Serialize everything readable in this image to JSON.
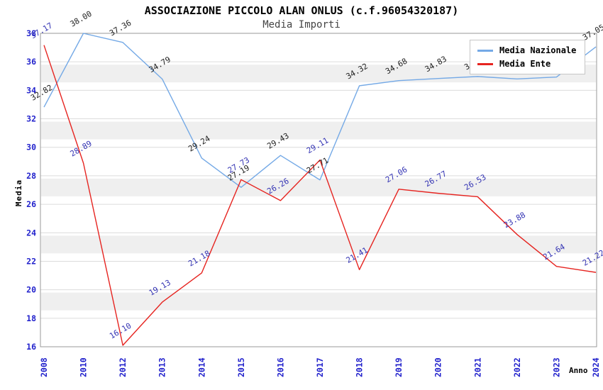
{
  "title": "ASSOCIAZIONE PICCOLO ALAN ONLUS (c.f.96054320187)",
  "subtitle": "Media Importi",
  "chart_data": {
    "type": "line",
    "title": "ASSOCIAZIONE PICCOLO ALAN ONLUS (c.f.96054320187)",
    "subtitle": "Media Importi",
    "xlabel": "Anno",
    "ylabel": "Media",
    "ylim": [
      16,
      38
    ],
    "ytick_step": 2,
    "grid": true,
    "legend_position": "top-right",
    "tick_label_color": "#2222cc",
    "categories": [
      "2008",
      "2010",
      "2012",
      "2013",
      "2014",
      "2015",
      "2016",
      "2017",
      "2018",
      "2019",
      "2020",
      "2021",
      "2022",
      "2023",
      "2024"
    ],
    "series": [
      {
        "name": "Media Nazionale",
        "color": "#74a9e6",
        "label_color": "#222222",
        "values": [
          32.82,
          38.0,
          37.36,
          34.79,
          29.24,
          27.19,
          29.43,
          27.71,
          34.32,
          34.68,
          34.83,
          34.97,
          34.8,
          34.93,
          37.05
        ]
      },
      {
        "name": "Media Ente",
        "color": "#e62420",
        "label_color": "#3434b4",
        "values": [
          37.17,
          28.89,
          16.1,
          19.13,
          21.18,
          27.73,
          26.26,
          29.11,
          21.41,
          27.06,
          26.77,
          26.53,
          23.88,
          21.64,
          21.22
        ]
      }
    ]
  }
}
